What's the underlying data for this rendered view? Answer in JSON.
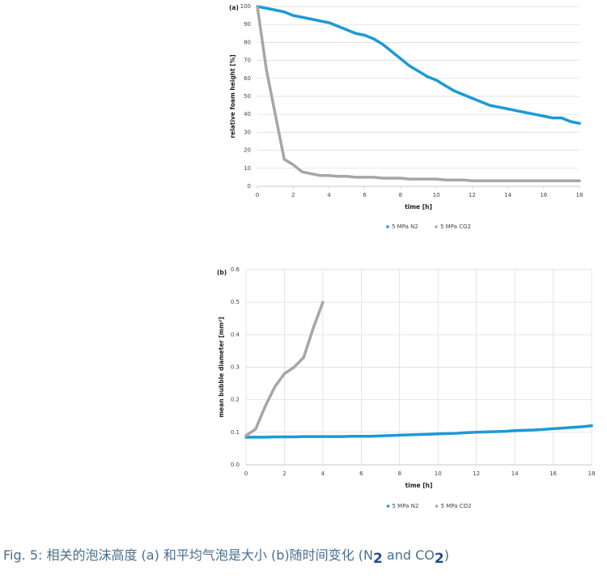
{
  "chart_data": [
    {
      "type": "line",
      "panel": "(a)",
      "ylabel": "relative foam height [%]",
      "xlabel": "time [h]",
      "x": [
        0,
        0.5,
        1,
        1.5,
        2,
        2.5,
        3,
        3.5,
        4,
        4.5,
        5,
        5.5,
        6,
        6.5,
        7,
        7.5,
        8,
        8.5,
        9,
        9.5,
        10,
        10.5,
        11,
        11.5,
        12,
        12.5,
        13,
        13.5,
        14,
        14.5,
        15,
        15.5,
        16,
        16.5,
        17,
        17.5,
        18
      ],
      "series": [
        {
          "name": "5 MPa N2",
          "color": "#1b9ad6",
          "values": [
            100,
            99,
            98,
            97,
            95,
            94,
            93,
            92,
            91,
            89,
            87,
            85,
            84,
            82,
            79,
            75,
            71,
            67,
            64,
            61,
            59,
            56,
            53,
            51,
            49,
            47,
            45,
            44,
            43,
            42,
            41,
            40,
            39,
            38,
            38,
            36,
            35
          ]
        },
        {
          "name": "5 MPa CO2",
          "color": "#a6a6a6",
          "values": [
            100,
            65,
            40,
            15,
            12,
            8,
            7,
            6,
            6,
            5.5,
            5.5,
            5,
            5,
            5,
            4.5,
            4.5,
            4.5,
            4,
            4,
            4,
            4,
            3.5,
            3.5,
            3.5,
            3,
            3,
            3,
            3,
            3,
            3,
            3,
            3,
            3,
            3,
            3,
            3,
            3
          ]
        }
      ],
      "xlim": [
        0,
        18
      ],
      "xticks": [
        0,
        2,
        4,
        6,
        8,
        10,
        12,
        14,
        16,
        18
      ],
      "ylim": [
        0,
        100
      ],
      "yticks": [
        0,
        10,
        20,
        30,
        40,
        50,
        60,
        70,
        80,
        90,
        100
      ],
      "grid": "y"
    },
    {
      "type": "line",
      "panel": "(b)",
      "ylabel": "mean bubble diameter [mm²]",
      "xlabel": "time [h]",
      "x": [
        0,
        0.5,
        1,
        1.5,
        2,
        2.5,
        3,
        3.5,
        4,
        4.5,
        5,
        5.5,
        6,
        6.5,
        7,
        7.5,
        8,
        8.5,
        9,
        9.5,
        10,
        10.5,
        11,
        11.5,
        12,
        12.5,
        13,
        13.5,
        14,
        14.5,
        15,
        15.5,
        16,
        16.5,
        17,
        17.5,
        18
      ],
      "series": [
        {
          "name": "5 MPa N2",
          "color": "#1b9ad6",
          "values": [
            0.085,
            0.085,
            0.085,
            0.086,
            0.086,
            0.086,
            0.087,
            0.087,
            0.087,
            0.087,
            0.087,
            0.088,
            0.088,
            0.088,
            0.089,
            0.09,
            0.091,
            0.092,
            0.093,
            0.094,
            0.095,
            0.096,
            0.097,
            0.099,
            0.1,
            0.101,
            0.102,
            0.103,
            0.105,
            0.106,
            0.107,
            0.109,
            0.111,
            0.113,
            0.115,
            0.117,
            0.12
          ]
        },
        {
          "name": "5 MPa CO2",
          "color": "#a6a6a6",
          "values": [
            0.09,
            0.11,
            0.18,
            0.24,
            0.28,
            0.3,
            0.33,
            0.42,
            0.5,
            null,
            null,
            null,
            null,
            null,
            null,
            null,
            null,
            null,
            null,
            null,
            null,
            null,
            null,
            null,
            null,
            null,
            null,
            null,
            null,
            null,
            null,
            null,
            null,
            null,
            null,
            null,
            null
          ]
        }
      ],
      "xlim": [
        0,
        18
      ],
      "xticks": [
        0,
        2,
        4,
        6,
        8,
        10,
        12,
        14,
        16,
        18
      ],
      "ylim": [
        0,
        0.6
      ],
      "yticks": [
        {
          "value": 0,
          "label": "0.0"
        },
        0.1,
        0.2,
        0.3,
        0.4,
        0.5,
        0.6
      ],
      "grid": "both"
    }
  ],
  "caption": {
    "text": "Fig. 5: 相关的泡沫高度 (a) 和平均气泡是大小 (b)随时间变化 (N",
    "sub1": "2",
    "mid": " and CO",
    "sub2": "2",
    "end": ")"
  }
}
